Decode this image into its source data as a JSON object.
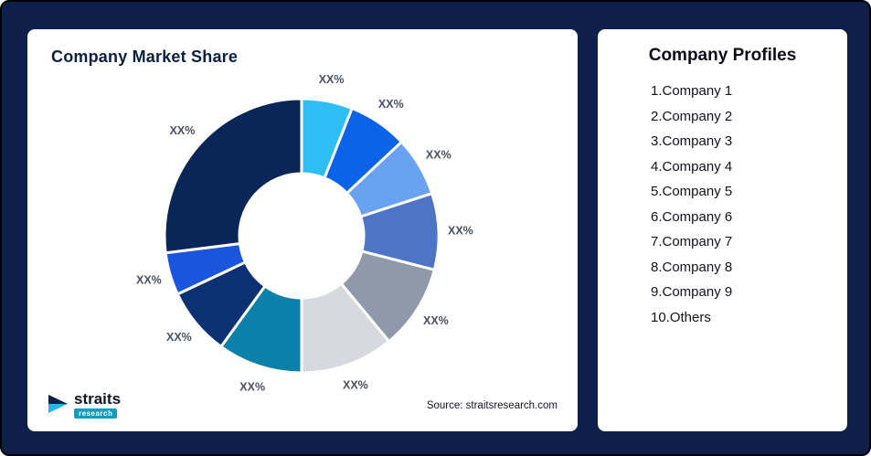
{
  "page": {
    "background_color": "#0e1f4b"
  },
  "market_share_card": {
    "title": "Company Market Share",
    "source": "Source: straitsresearch.com"
  },
  "logo": {
    "name": "straits",
    "sub": "research"
  },
  "profiles_card": {
    "title": "Company Profiles",
    "items": [
      "1.Company 1",
      "2.Company 2",
      "3.Company 3",
      "4.Company 4",
      "5.Company 5",
      "6.Company 6",
      "7.Company 7",
      "8.Company 8",
      "9.Company 9",
      "10.Others"
    ]
  },
  "chart_data": {
    "type": "pie",
    "subtype": "donut",
    "title": "Company Market Share",
    "categories": [
      "Company 1",
      "Company 2",
      "Company 3",
      "Company 4",
      "Company 5",
      "Company 6",
      "Company 7",
      "Company 8",
      "Company 9",
      "Others"
    ],
    "values": [
      6,
      7,
      7,
      9,
      10,
      11,
      10,
      8,
      5,
      27
    ],
    "labels": [
      "XX%",
      "XX%",
      "XX%",
      "XX%",
      "XX%",
      "XX%",
      "XX%",
      "XX%",
      "XX%",
      "XX%"
    ],
    "colors": [
      "#2fbdf6",
      "#0a63e8",
      "#6aa2f2",
      "#4e75c5",
      "#8e99aa",
      "#d6dade",
      "#0b80a8",
      "#0c3173",
      "#1b55dd",
      "#0a2658"
    ],
    "legend": "none",
    "start_angle_deg": 0,
    "label_color": "#4b5060"
  }
}
